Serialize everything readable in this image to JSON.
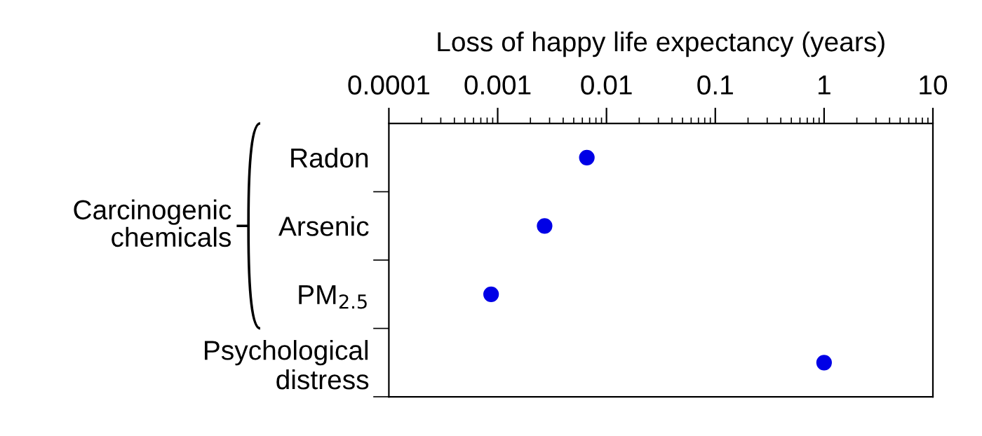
{
  "chart_data": {
    "type": "scatter",
    "orientation": "horizontal",
    "xlabel": "Loss of happy life expectancy (years)",
    "categories": [
      "Radon",
      "Arsenic",
      "PM$_{2.5}$",
      "Psychological\ndistress"
    ],
    "values": [
      0.0066,
      0.0027,
      0.00087,
      1
    ],
    "color": "#0000e6",
    "marker": "circle",
    "log": "x",
    "grid": false,
    "legend": false,
    "xlim": [
      0.0001,
      10
    ],
    "xticks": [
      0.0001,
      0.001,
      0.01,
      0.1,
      1,
      10
    ],
    "annotations": [
      "Carcinogenic\nchemicals"
    ]
  }
}
